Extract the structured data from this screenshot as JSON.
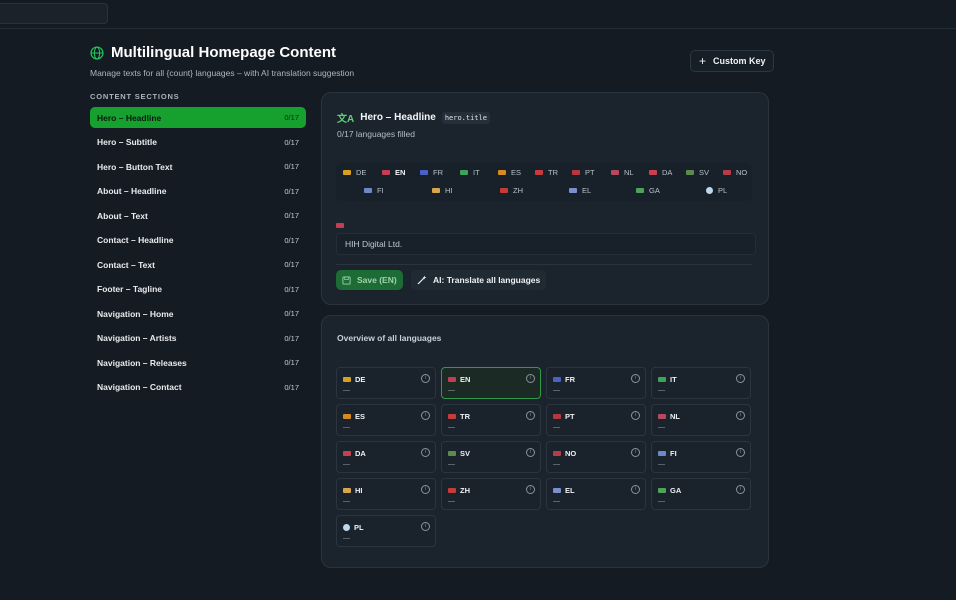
{
  "header": {
    "title": "Multilingual Homepage Content",
    "subtitle": "Manage texts for all {count} languages – with AI translation suggestion",
    "custom_key_label": "Custom Key"
  },
  "sidebar": {
    "label": "CONTENT SECTIONS",
    "items": [
      {
        "label": "Hero – Headline",
        "count": "0/17"
      },
      {
        "label": "Hero – Subtitle",
        "count": "0/17"
      },
      {
        "label": "Hero – Button Text",
        "count": "0/17"
      },
      {
        "label": "About – Headline",
        "count": "0/17"
      },
      {
        "label": "About – Text",
        "count": "0/17"
      },
      {
        "label": "Contact – Headline",
        "count": "0/17"
      },
      {
        "label": "Contact – Text",
        "count": "0/17"
      },
      {
        "label": "Footer – Tagline",
        "count": "0/17"
      },
      {
        "label": "Navigation – Home",
        "count": "0/17"
      },
      {
        "label": "Navigation – Artists",
        "count": "0/17"
      },
      {
        "label": "Navigation – Releases",
        "count": "0/17"
      },
      {
        "label": "Navigation – Contact",
        "count": "0/17"
      }
    ]
  },
  "editor": {
    "title": "Hero – Headline",
    "key": "hero.title",
    "filled": "0/17 languages filled",
    "input_value": "HIH Digital Ltd.",
    "save_label": "Save (EN)",
    "ai_label": "AI: Translate all languages"
  },
  "languages": [
    {
      "code": "DE",
      "flag_color": "#d9a020"
    },
    {
      "code": "EN",
      "flag_color": "#c43d55"
    },
    {
      "code": "FR",
      "flag_color": "#4a62c4"
    },
    {
      "code": "IT",
      "flag_color": "#3ea35a"
    },
    {
      "code": "ES",
      "flag_color": "#d98a1e"
    },
    {
      "code": "TR",
      "flag_color": "#c93a3a"
    },
    {
      "code": "PT",
      "flag_color": "#b8373f"
    },
    {
      "code": "NL",
      "flag_color": "#b54a5f"
    },
    {
      "code": "DA",
      "flag_color": "#c8414a"
    },
    {
      "code": "SV",
      "flag_color": "#5d8a4a"
    },
    {
      "code": "NO",
      "flag_color": "#b93b4a"
    },
    {
      "code": "FI",
      "flag_color": "#6d87c8"
    },
    {
      "code": "HI",
      "flag_color": "#d7a64a"
    },
    {
      "code": "ZH",
      "flag_color": "#c53b35"
    },
    {
      "code": "EL",
      "flag_color": "#7b8fcf"
    },
    {
      "code": "GA",
      "flag_color": "#4fa25a"
    },
    {
      "code": "PL",
      "flag_color": "#bcd8ee"
    }
  ],
  "selected_language": "EN",
  "overview": {
    "title": "Overview of all languages",
    "empty_value": "—"
  },
  "colors": {
    "accent": "#16a12f",
    "background": "#141b22",
    "card": "#1b242d"
  }
}
